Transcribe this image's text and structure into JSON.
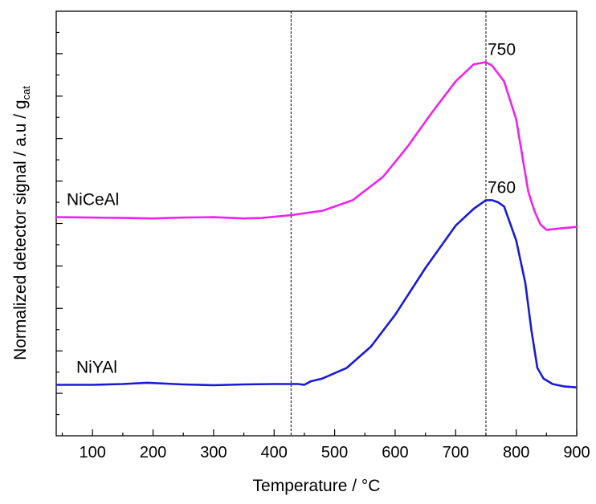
{
  "chart_data": {
    "type": "line",
    "xlabel": "Temperature / °C",
    "ylabel_main": "Normalized detector signal / a.u / g",
    "ylabel_sub": "cat",
    "xlim": [
      40,
      900
    ],
    "ylim": [
      0,
      10
    ],
    "x_ticks": [
      100,
      200,
      300,
      400,
      500,
      600,
      700,
      800,
      900
    ],
    "y_ticks": [
      1,
      2,
      3,
      4,
      5,
      6,
      7,
      8,
      9,
      10
    ],
    "reference_lines": [
      428,
      750
    ],
    "series": [
      {
        "name": "NiCeAl",
        "color": "#ee22ee",
        "peak_label": "750",
        "x": [
          40,
          100,
          150,
          200,
          250,
          300,
          350,
          380,
          430,
          480,
          530,
          580,
          620,
          660,
          700,
          730,
          750,
          760,
          780,
          800,
          810,
          820,
          830,
          840,
          850,
          870,
          900
        ],
        "y": [
          5.15,
          5.14,
          5.13,
          5.12,
          5.14,
          5.15,
          5.12,
          5.13,
          5.2,
          5.3,
          5.55,
          6.1,
          6.8,
          7.6,
          8.35,
          8.75,
          8.8,
          8.72,
          8.35,
          7.45,
          6.6,
          5.75,
          5.3,
          4.98,
          4.85,
          4.88,
          4.92
        ]
      },
      {
        "name": "NiYAl",
        "color": "#1a1ad6",
        "peak_label": "760",
        "x": [
          40,
          100,
          150,
          190,
          250,
          300,
          350,
          400,
          440,
          450,
          460,
          480,
          520,
          560,
          600,
          650,
          700,
          730,
          750,
          760,
          770,
          780,
          800,
          815,
          825,
          835,
          845,
          860,
          880,
          900
        ],
        "y": [
          1.2,
          1.2,
          1.22,
          1.25,
          1.21,
          1.19,
          1.21,
          1.22,
          1.22,
          1.2,
          1.28,
          1.35,
          1.6,
          2.1,
          2.85,
          3.95,
          4.95,
          5.35,
          5.55,
          5.55,
          5.5,
          5.4,
          4.6,
          3.6,
          2.5,
          1.6,
          1.35,
          1.22,
          1.16,
          1.14
        ]
      }
    ]
  }
}
